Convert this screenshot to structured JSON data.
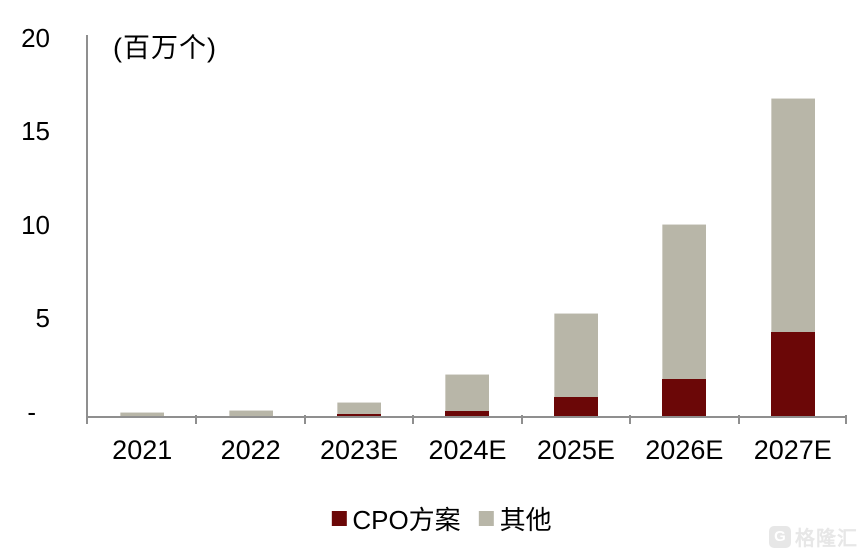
{
  "chart_data": {
    "type": "bar",
    "stacked": true,
    "title": "",
    "unit_label": "(百万个)",
    "categories": [
      "2021",
      "2022",
      "2023E",
      "2024E",
      "2025E",
      "2026E",
      "2027E"
    ],
    "series": [
      {
        "name": "CPO方案",
        "color": "#6b0707",
        "values": [
          0,
          0,
          0.1,
          0.25,
          1.0,
          2.0,
          4.5
        ]
      },
      {
        "name": "其他",
        "color": "#b8b6a8",
        "values": [
          0.2,
          0.3,
          0.65,
          2.0,
          4.5,
          8.3,
          12.5
        ]
      }
    ],
    "ylim": [
      0,
      20
    ],
    "yticks": [
      {
        "value": 0,
        "label": "-"
      },
      {
        "value": 5,
        "label": "5"
      },
      {
        "value": 10,
        "label": "10"
      },
      {
        "value": 15,
        "label": "15"
      },
      {
        "value": 20,
        "label": "20"
      }
    ],
    "grid": false,
    "legend_position": "bottom"
  },
  "watermark": {
    "icon_letter": "G",
    "text": "格隆汇"
  }
}
